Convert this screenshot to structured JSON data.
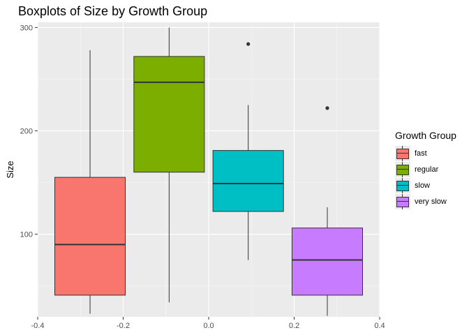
{
  "chart_data": {
    "type": "boxplot",
    "title": "Boxplots of Size by Growth Group",
    "xlabel": "",
    "ylabel": "Size",
    "xlim": [
      -0.4,
      0.4
    ],
    "ylim": [
      20,
      305
    ],
    "x_ticks": [
      -0.4,
      -0.2,
      0.0,
      0.2,
      0.4
    ],
    "x_tick_labels": [
      "-0.4",
      "-0.2",
      "0.0",
      "0.2",
      "0.4"
    ],
    "y_ticks": [
      100,
      200,
      300
    ],
    "y_tick_labels": [
      "100",
      "200",
      "300"
    ],
    "grid": true,
    "legend_title": "Growth Group",
    "legend_position": "right",
    "series": [
      {
        "name": "fast",
        "color": "#F8766D",
        "x_center": -0.2775,
        "width": 0.165,
        "whisker_low": 23,
        "q1": 41,
        "median": 90,
        "q3": 155,
        "whisker_high": 278,
        "outliers": []
      },
      {
        "name": "regular",
        "color": "#7CAE00",
        "x_center": -0.0925,
        "width": 0.165,
        "whisker_low": 34,
        "q1": 160,
        "median": 247,
        "q3": 272,
        "whisker_high": 300,
        "outliers": []
      },
      {
        "name": "slow",
        "color": "#00BFC4",
        "x_center": 0.0925,
        "width": 0.165,
        "whisker_low": 75,
        "q1": 122,
        "median": 149,
        "q3": 181,
        "whisker_high": 225,
        "outliers": [
          284
        ]
      },
      {
        "name": "very slow",
        "color": "#C77CFF",
        "x_center": 0.2775,
        "width": 0.165,
        "whisker_low": 21,
        "q1": 41,
        "median": 75,
        "q3": 106,
        "whisker_high": 126,
        "outliers": [
          222
        ]
      }
    ]
  }
}
